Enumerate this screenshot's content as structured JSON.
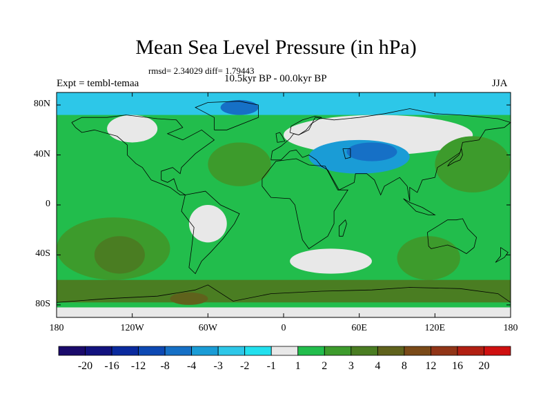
{
  "chart_data": {
    "type": "heatmap",
    "title": "Mean Sea Level Pressure (in hPa)",
    "stats_line": "rmsd= 2.34029 diff= 1.79443",
    "subtitle": "10.5kyr BP - 00.0kyr BP",
    "left_label": "Expt = tembl-temaa",
    "right_label": "JJA",
    "y_ticks": [
      "80N",
      "40N",
      "0",
      "40S",
      "80S"
    ],
    "y_tick_values": [
      80,
      40,
      0,
      -40,
      -80
    ],
    "x_ticks": [
      "180",
      "120W",
      "60W",
      "0",
      "60E",
      "120E",
      "180"
    ],
    "x_tick_values": [
      -180,
      -120,
      -60,
      0,
      60,
      120,
      180
    ],
    "xlim": [
      -180,
      180
    ],
    "ylim": [
      -90,
      90
    ],
    "colorbar": {
      "labels": [
        "-20",
        "-16",
        "-12",
        "-8",
        "-4",
        "-3",
        "-2",
        "-1",
        "1",
        "2",
        "3",
        "4",
        "8",
        "12",
        "16",
        "20"
      ],
      "colors": [
        "#1a0a6b",
        "#12127e",
        "#0a2a9e",
        "#0d49b3",
        "#1670c6",
        "#1a9cd6",
        "#2dc7e8",
        "#22e0ee",
        "#e8e8e8",
        "#22bd4c",
        "#3d9b2c",
        "#4a7d22",
        "#5f621c",
        "#7a4a18",
        "#913517",
        "#b11f12",
        "#cf1010"
      ]
    },
    "fields": {
      "base_level": "2",
      "regions": [
        {
          "name": "arctic-blue",
          "level": "-2",
          "lon": [
            -180,
            180
          ],
          "lat": [
            72,
            90
          ]
        },
        {
          "name": "greenland-blue",
          "level": "-4",
          "lon": [
            -50,
            -20
          ],
          "lat": [
            72,
            84
          ]
        },
        {
          "name": "north-america-white",
          "level": "1",
          "lon": [
            -140,
            -100
          ],
          "lat": [
            50,
            72
          ]
        },
        {
          "name": "eurasia-white",
          "level": "1",
          "lon": [
            0,
            150
          ],
          "lat": [
            40,
            72
          ]
        },
        {
          "name": "asia-low",
          "level": "-3",
          "lon": [
            20,
            100
          ],
          "lat": [
            25,
            52
          ]
        },
        {
          "name": "asia-low-core",
          "level": "-4",
          "lon": [
            50,
            90
          ],
          "lat": [
            35,
            50
          ]
        },
        {
          "name": "south-america-white",
          "level": "1",
          "lon": [
            -75,
            -45
          ],
          "lat": [
            -30,
            0
          ]
        },
        {
          "name": "south-atlantic-white",
          "level": "1",
          "lon": [
            5,
            70
          ],
          "lat": [
            -55,
            -35
          ]
        },
        {
          "name": "pacific-high-nw",
          "level": "3",
          "lon": [
            120,
            180
          ],
          "lat": [
            10,
            55
          ]
        },
        {
          "name": "atlantic-high-n",
          "level": "3",
          "lon": [
            -60,
            -10
          ],
          "lat": [
            15,
            50
          ]
        },
        {
          "name": "south-pacific-high",
          "level": "3",
          "lon": [
            -180,
            -90
          ],
          "lat": [
            -60,
            -10
          ]
        },
        {
          "name": "indian-high",
          "level": "3",
          "lon": [
            90,
            140
          ],
          "lat": [
            -60,
            -25
          ]
        },
        {
          "name": "southern-ocean-brown",
          "level": "4",
          "lon": [
            -180,
            180
          ],
          "lat": [
            -78,
            -60
          ]
        },
        {
          "name": "south-pacific-core",
          "level": "4",
          "lon": [
            -150,
            -110
          ],
          "lat": [
            -55,
            -25
          ]
        },
        {
          "name": "southern-core",
          "level": "8",
          "lon": [
            -90,
            -60
          ],
          "lat": [
            -80,
            -70
          ]
        },
        {
          "name": "antarctic-white",
          "level": "1",
          "lon": [
            -180,
            180
          ],
          "lat": [
            -90,
            -82
          ]
        }
      ]
    }
  }
}
